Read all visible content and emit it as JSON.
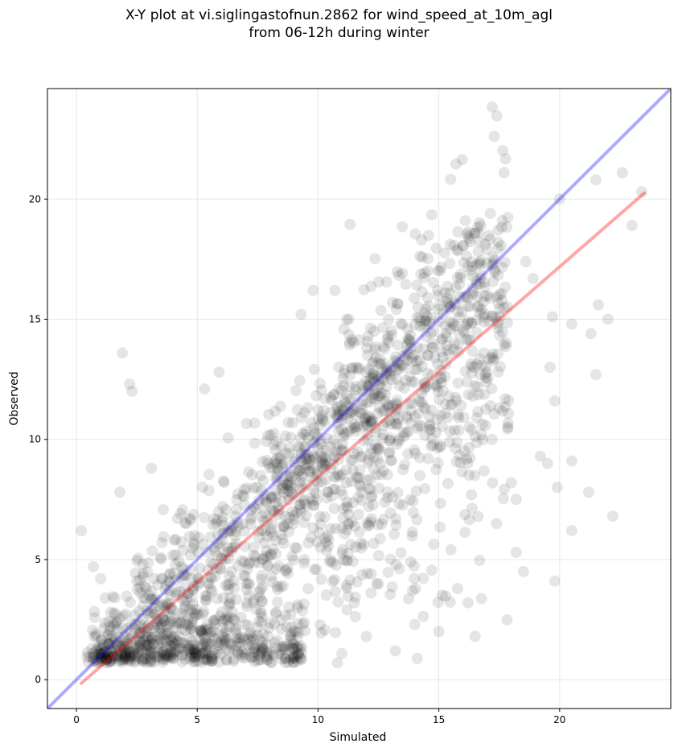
{
  "chart_data": {
    "type": "scatter",
    "title_line1": "X-Y plot at vi.siglingastofnun.2862 for wind_speed_at_10m_agl",
    "title_line2": "from 06-12h during winter",
    "xlabel": "Simulated",
    "ylabel": "Observed",
    "xlim": [
      -1.2,
      24.6
    ],
    "ylim": [
      -1.2,
      24.6
    ],
    "xticks": [
      0,
      5,
      10,
      15,
      20
    ],
    "yticks": [
      0,
      5,
      10,
      15,
      20
    ],
    "grid": true,
    "point_color": "#000000",
    "point_alpha": 0.1,
    "identity_line": {
      "color": "#0000ff",
      "alpha": 0.33,
      "from": [
        -1.2,
        -1.2
      ],
      "to": [
        24.6,
        24.6
      ]
    },
    "fit_line": {
      "color": "#ff0000",
      "alpha": 0.35,
      "from": [
        0.2,
        -0.15
      ],
      "to": [
        23.5,
        20.25
      ]
    },
    "outlier_points": [
      [
        0.2,
        6.2
      ],
      [
        0.7,
        4.7
      ],
      [
        1.0,
        4.2
      ],
      [
        1.8,
        7.8
      ],
      [
        1.9,
        13.6
      ],
      [
        2.2,
        12.3
      ],
      [
        2.3,
        12.0
      ],
      [
        3.1,
        8.8
      ],
      [
        5.3,
        12.1
      ],
      [
        5.9,
        12.8
      ],
      [
        9.3,
        15.2
      ],
      [
        9.8,
        16.2
      ],
      [
        10.7,
        16.2
      ],
      [
        16.5,
        1.8
      ],
      [
        17.2,
        10.0
      ],
      [
        17.5,
        11.3
      ],
      [
        17.7,
        21.1
      ],
      [
        18.0,
        8.2
      ],
      [
        18.2,
        5.3
      ],
      [
        18.2,
        7.5
      ],
      [
        18.5,
        4.5
      ],
      [
        19.2,
        9.3
      ],
      [
        19.5,
        9.0
      ],
      [
        19.6,
        13.0
      ],
      [
        19.8,
        4.1
      ],
      [
        19.9,
        8.0
      ],
      [
        20.0,
        20.0
      ],
      [
        20.5,
        6.2
      ],
      [
        20.5,
        9.1
      ],
      [
        21.2,
        7.8
      ],
      [
        21.5,
        12.7
      ],
      [
        21.5,
        20.8
      ],
      [
        21.6,
        15.6
      ],
      [
        22.0,
        15.0
      ],
      [
        22.2,
        6.8
      ],
      [
        22.6,
        21.1
      ],
      [
        23.0,
        18.9
      ],
      [
        23.4,
        20.3
      ],
      [
        18.6,
        17.4
      ],
      [
        18.9,
        16.7
      ],
      [
        19.7,
        15.1
      ],
      [
        19.8,
        11.6
      ],
      [
        20.5,
        14.8
      ],
      [
        21.3,
        14.4
      ],
      [
        16.1,
        19.1
      ],
      [
        16.5,
        18.6
      ],
      [
        17.0,
        17.9
      ],
      [
        16.2,
        3.2
      ],
      [
        15.0,
        2.0
      ],
      [
        14.0,
        2.3
      ],
      [
        13.2,
        1.2
      ],
      [
        12.0,
        1.8
      ],
      [
        10.8,
        0.7
      ],
      [
        11.5,
        3.2
      ],
      [
        12.2,
        4.4
      ]
    ]
  }
}
